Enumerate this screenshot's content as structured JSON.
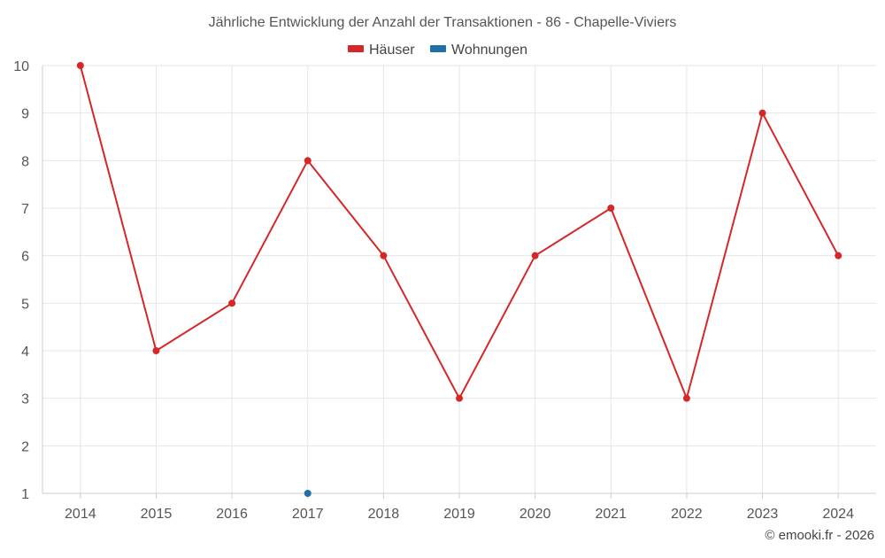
{
  "chart_data": {
    "type": "line",
    "title": "Jährliche Entwicklung der Anzahl der Transaktionen - 86 - Chapelle-Viviers",
    "categories": [
      "2014",
      "2015",
      "2016",
      "2017",
      "2018",
      "2019",
      "2020",
      "2021",
      "2022",
      "2023",
      "2024"
    ],
    "series": [
      {
        "name": "Häuser",
        "color": "#d62728",
        "values": [
          10,
          4,
          5,
          8,
          6,
          3,
          6,
          7,
          3,
          9,
          6
        ]
      },
      {
        "name": "Wohnungen",
        "color": "#1f6fa8",
        "values": [
          null,
          null,
          null,
          1,
          null,
          null,
          null,
          null,
          null,
          null,
          null
        ]
      }
    ],
    "y_ticks": [
      "1",
      "2",
      "3",
      "4",
      "5",
      "6",
      "7",
      "8",
      "9",
      "10"
    ],
    "ylim": [
      1,
      10
    ],
    "xlabel": "",
    "ylabel": "",
    "grid": true,
    "legend_position": "top-center"
  },
  "credit": "© emooki.fr - 2026"
}
